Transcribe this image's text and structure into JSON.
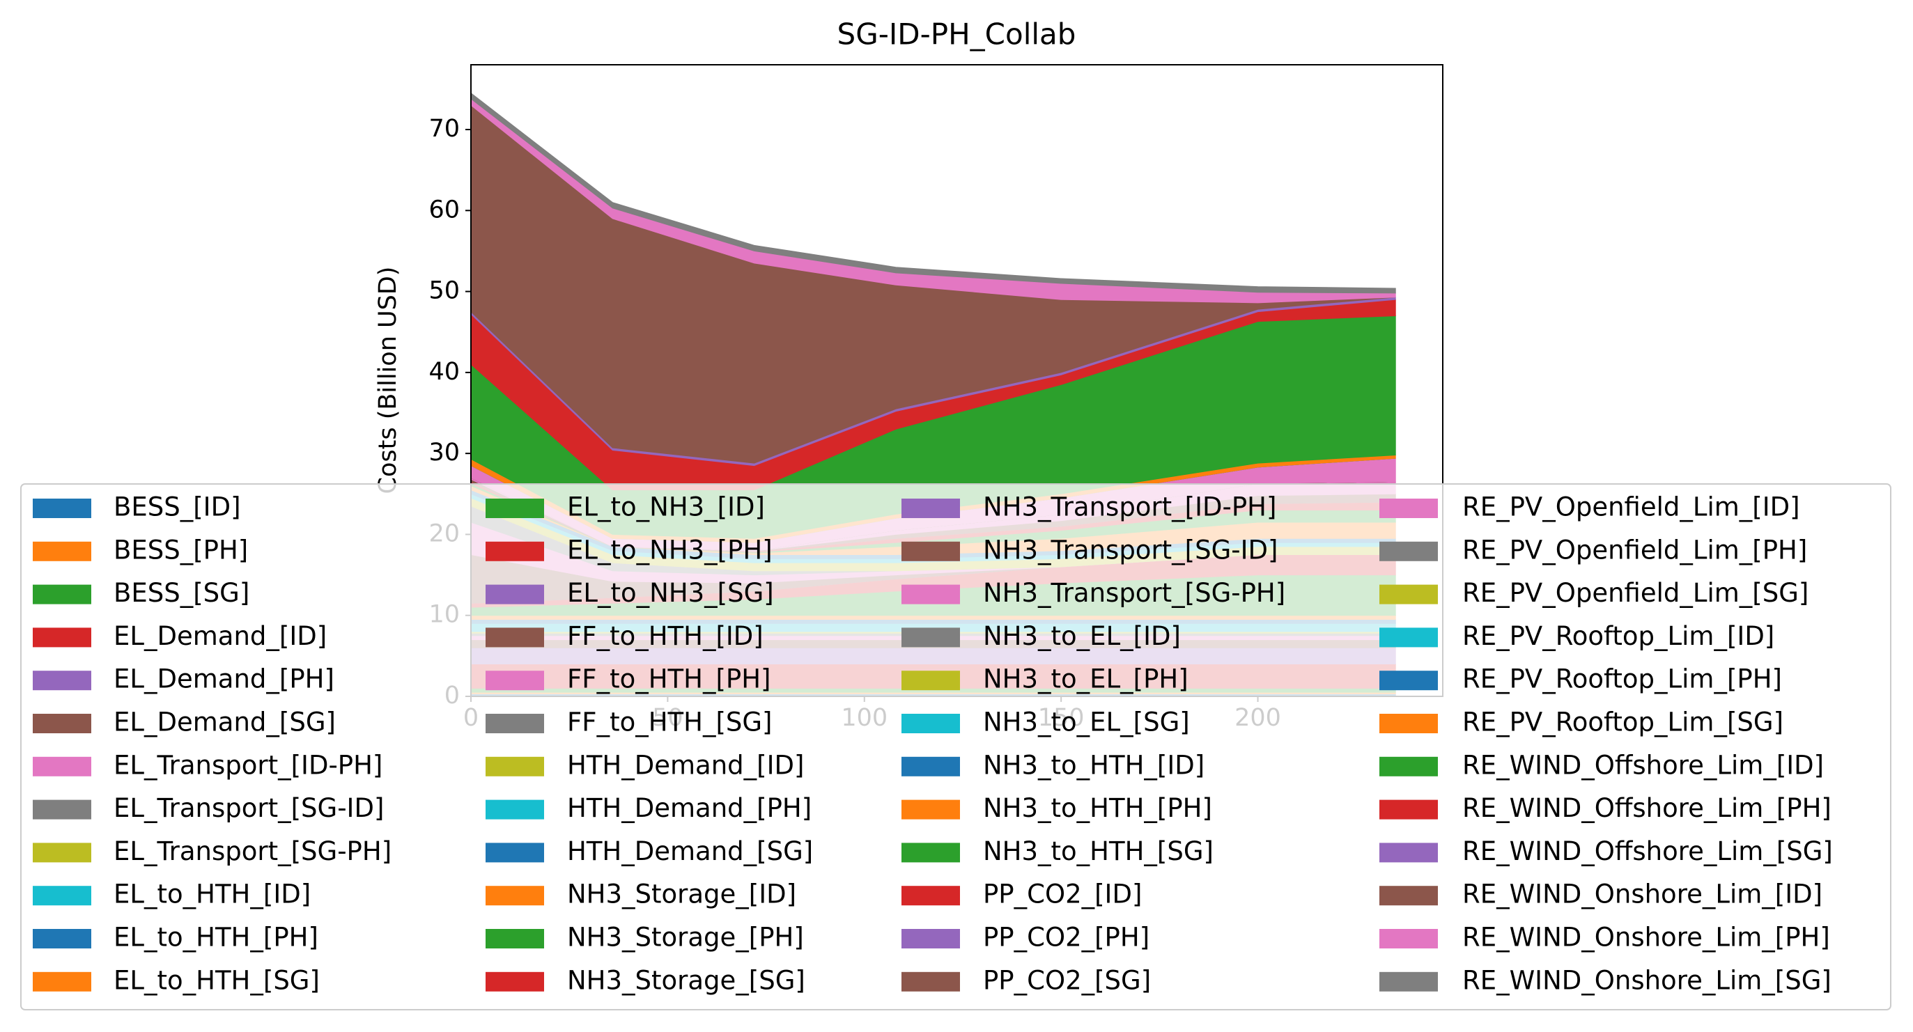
{
  "chart_data": {
    "type": "stackplot",
    "title": "SG-ID-PH_Collab",
    "ylabel": "Costs (Billion USD)",
    "x": [
      0,
      36,
      72,
      108,
      150,
      200,
      235
    ],
    "xlim": [
      0,
      247
    ],
    "ylim": [
      0,
      78
    ],
    "xticks": [
      0,
      50,
      100,
      150,
      200
    ],
    "yticks": [
      0,
      10,
      20,
      30,
      40,
      50,
      60,
      70
    ],
    "grid": false,
    "legend": "lower center",
    "series": [
      {
        "name": "BESS_[ID]",
        "color": "#1f77b4",
        "values": [
          0.3,
          0.3,
          0.3,
          0.3,
          0.3,
          0.3,
          0.3
        ]
      },
      {
        "name": "BESS_[PH]",
        "color": "#ff7f0e",
        "values": [
          0.2,
          0.2,
          0.2,
          0.2,
          0.2,
          0.2,
          0.2
        ]
      },
      {
        "name": "BESS_[SG]",
        "color": "#2ca02c",
        "values": [
          0.5,
          0.5,
          0.5,
          0.5,
          0.5,
          0.5,
          0.5
        ]
      },
      {
        "name": "EL_Demand_[ID]",
        "color": "#d62728",
        "values": [
          3,
          3,
          3,
          3,
          3,
          3,
          3
        ]
      },
      {
        "name": "EL_Demand_[PH]",
        "color": "#9467bd",
        "values": [
          2,
          2,
          2,
          2,
          2,
          2,
          2
        ]
      },
      {
        "name": "EL_Demand_[SG]",
        "color": "#8c564b",
        "values": [
          1,
          1,
          1,
          1,
          1,
          1,
          1
        ]
      },
      {
        "name": "EL_Transport_[ID-PH]",
        "color": "#e377c2",
        "values": [
          0.5,
          0.5,
          0.5,
          0.5,
          0.5,
          0.5,
          0.5
        ]
      },
      {
        "name": "EL_Transport_[SG-ID]",
        "color": "#7f7f7f",
        "values": [
          0.3,
          0.3,
          0.3,
          0.3,
          0.3,
          0.3,
          0.3
        ]
      },
      {
        "name": "EL_Transport_[SG-PH]",
        "color": "#bcbd22",
        "values": [
          0.2,
          0.2,
          0.2,
          0.2,
          0.2,
          0.2,
          0.2
        ]
      },
      {
        "name": "EL_to_HTH_[ID]",
        "color": "#17becf",
        "values": [
          1,
          1,
          1,
          1,
          1,
          1,
          1
        ]
      },
      {
        "name": "EL_to_HTH_[PH]",
        "color": "#1f77b4",
        "values": [
          0.5,
          0.5,
          0.5,
          0.5,
          0.5,
          0.5,
          0.5
        ]
      },
      {
        "name": "EL_to_HTH_[SG]",
        "color": "#ff7f0e",
        "values": [
          0.5,
          0.5,
          0.5,
          0.5,
          0.5,
          0.5,
          0.5
        ]
      },
      {
        "name": "EL_to_NH3_[ID]",
        "color": "#2ca02c",
        "values": [
          1,
          1.5,
          2,
          3,
          4,
          5,
          5
        ]
      },
      {
        "name": "EL_to_NH3_[PH]",
        "color": "#d62728",
        "values": [
          0.5,
          0.7,
          1,
          1.5,
          2,
          2.5,
          2.5
        ]
      },
      {
        "name": "EL_to_NH3_[SG]",
        "color": "#9467bd",
        "values": [
          0,
          0,
          0,
          0,
          0,
          0,
          0
        ]
      },
      {
        "name": "FF_to_HTH_[ID]",
        "color": "#8c564b",
        "values": [
          6,
          2,
          1,
          0.5,
          0,
          0,
          0
        ]
      },
      {
        "name": "FF_to_HTH_[PH]",
        "color": "#e377c2",
        "values": [
          4,
          1.3,
          1,
          0.5,
          0,
          0,
          0
        ]
      },
      {
        "name": "FF_to_HTH_[SG]",
        "color": "#7f7f7f",
        "values": [
          2,
          1,
          0.5,
          0,
          0,
          0,
          0
        ]
      },
      {
        "name": "HTH_Demand_[ID]",
        "color": "#bcbd22",
        "values": [
          1,
          1,
          1,
          1,
          1,
          1,
          1
        ]
      },
      {
        "name": "HTH_Demand_[PH]",
        "color": "#17becf",
        "values": [
          0.5,
          0.5,
          0.5,
          0.5,
          0.5,
          0.5,
          0.5
        ]
      },
      {
        "name": "HTH_Demand_[SG]",
        "color": "#1f77b4",
        "values": [
          0.5,
          0.5,
          0.5,
          0.5,
          0.5,
          0.5,
          0.5
        ]
      },
      {
        "name": "NH3_Storage_[ID]",
        "color": "#ff7f0e",
        "values": [
          0.5,
          0,
          0.2,
          1,
          1.5,
          2,
          2
        ]
      },
      {
        "name": "NH3_Storage_[PH]",
        "color": "#2ca02c",
        "values": [
          0.3,
          0,
          0.1,
          0.5,
          1,
          1.5,
          1.5
        ]
      },
      {
        "name": "NH3_Storage_[SG]",
        "color": "#d62728",
        "values": [
          0.2,
          0,
          0.1,
          0.5,
          0.5,
          0.8,
          1
        ]
      },
      {
        "name": "NH3_Transport_[ID-PH]",
        "color": "#9467bd",
        "values": [
          0,
          0,
          0,
          0,
          0,
          0,
          0
        ]
      },
      {
        "name": "NH3_Transport_[SG-ID]",
        "color": "#8c564b",
        "values": [
          0.3,
          0,
          0.05,
          0.5,
          0.7,
          1,
          1
        ]
      },
      {
        "name": "NH3_Transport_[SG-PH]",
        "color": "#e377c2",
        "values": [
          0.2,
          0,
          0.05,
          0.5,
          0.8,
          1.5,
          1.5
        ]
      },
      {
        "name": "NH3_to_EL_[ID]",
        "color": "#7f7f7f",
        "values": [
          0,
          0,
          0,
          0,
          0,
          0,
          0
        ]
      },
      {
        "name": "NH3_to_EL_[PH]",
        "color": "#bcbd22",
        "values": [
          0,
          0,
          0,
          0,
          0,
          0,
          0
        ]
      },
      {
        "name": "NH3_to_EL_[SG]",
        "color": "#17becf",
        "values": [
          0,
          0,
          0,
          0,
          0,
          0,
          0
        ]
      },
      {
        "name": "NH3_to_HTH_[ID]",
        "color": "#1f77b4",
        "values": [
          0,
          0,
          0,
          0,
          0,
          0,
          0
        ]
      },
      {
        "name": "NH3_to_HTH_[PH]",
        "color": "#ff7f0e",
        "values": [
          0,
          0,
          0,
          0,
          0,
          0,
          0
        ]
      },
      {
        "name": "NH3_to_HTH_[SG]",
        "color": "#2ca02c",
        "values": [
          0,
          0,
          0,
          0,
          0,
          0,
          0
        ]
      },
      {
        "name": "PP_CO2_[ID]",
        "color": "#d62728",
        "values": [
          0,
          0,
          0,
          0,
          0,
          0,
          0
        ]
      },
      {
        "name": "PP_CO2_[PH]",
        "color": "#9467bd",
        "values": [
          0,
          0,
          0,
          0,
          0,
          0,
          0
        ]
      },
      {
        "name": "PP_CO2_[SG]",
        "color": "#8c564b",
        "values": [
          0,
          0,
          0,
          0,
          0,
          0,
          0
        ]
      },
      {
        "name": "RE_PV_Openfield_Lim_[ID]",
        "color": "#e377c2",
        "values": [
          1.5,
          1,
          1,
          1.5,
          2,
          2,
          2.9
        ]
      },
      {
        "name": "RE_PV_Openfield_Lim_[PH]",
        "color": "#7f7f7f",
        "values": [
          0,
          0,
          0,
          0,
          0,
          0,
          0
        ]
      },
      {
        "name": "RE_PV_Openfield_Lim_[SG]",
        "color": "#bcbd22",
        "values": [
          0,
          0,
          0,
          0,
          0,
          0,
          0
        ]
      },
      {
        "name": "RE_PV_Rooftop_Lim_[ID]",
        "color": "#17becf",
        "values": [
          0,
          0,
          0,
          0,
          0,
          0,
          0
        ]
      },
      {
        "name": "RE_PV_Rooftop_Lim_[PH]",
        "color": "#1f77b4",
        "values": [
          0,
          0,
          0,
          0,
          0,
          0,
          0
        ]
      },
      {
        "name": "RE_PV_Rooftop_Lim_[SG]",
        "color": "#ff7f0e",
        "values": [
          0.8,
          0.5,
          0.5,
          0.5,
          0.5,
          0.5,
          0.4
        ]
      },
      {
        "name": "RE_WIND_Offshore_Lim_[ID]",
        "color": "#2ca02c",
        "values": [
          11.7,
          5.5,
          6,
          10.5,
          13.5,
          17.5,
          17.2
        ]
      },
      {
        "name": "RE_WIND_Offshore_Lim_[PH]",
        "color": "#d62728",
        "values": [
          6.2,
          4.9,
          3,
          2.2,
          1.2,
          1.2,
          2
        ]
      },
      {
        "name": "RE_WIND_Offshore_Lim_[SG]",
        "color": "#9467bd",
        "values": [
          0.3,
          0.3,
          0.3,
          0.3,
          0.3,
          0.3,
          0.3
        ]
      },
      {
        "name": "RE_WIND_Onshore_Lim_[ID]",
        "color": "#8c564b",
        "values": [
          25.5,
          28.3,
          24.7,
          15.3,
          9,
          0.8,
          0
        ]
      },
      {
        "name": "RE_WIND_Onshore_Lim_[PH]",
        "color": "#e377c2",
        "values": [
          0.8,
          1.3,
          1.5,
          1.5,
          2,
          1.3,
          0.5
        ]
      },
      {
        "name": "RE_WIND_Onshore_Lim_[SG]",
        "color": "#7f7f7f",
        "values": [
          0.7,
          0.7,
          0.7,
          0.7,
          0.6,
          0.7,
          0.6
        ]
      }
    ]
  }
}
